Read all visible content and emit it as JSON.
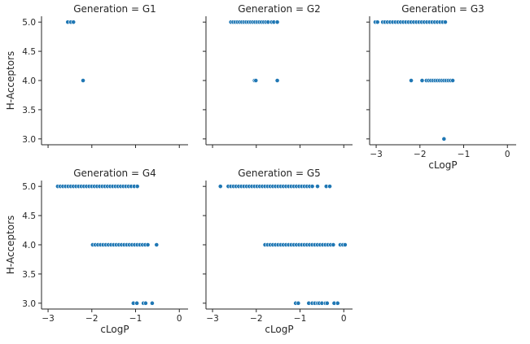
{
  "chart_data": {
    "type": "scatter",
    "xlabel": "cLogP",
    "ylabel": "H-Acceptors",
    "xlim": [
      -3.15,
      0.2
    ],
    "ylim": [
      2.9,
      5.1
    ],
    "xticks": [
      -3,
      -2,
      -1,
      0
    ],
    "xtick_labels": [
      "−3",
      "−2",
      "−1",
      "0"
    ],
    "yticks": [
      3.0,
      3.5,
      4.0,
      4.5,
      5.0
    ],
    "ytick_labels": [
      "3.0",
      "3.5",
      "4.0",
      "4.5",
      "5.0"
    ],
    "color": "#1f77b4",
    "grid": false,
    "panels": [
      {
        "title": "Generation = G1",
        "points": [
          [
            -2.55,
            5
          ],
          [
            -2.48,
            5
          ],
          [
            -2.42,
            5
          ],
          [
            -2.2,
            4
          ]
        ]
      },
      {
        "title": "Generation = G2",
        "points": [
          [
            -2.58,
            5
          ],
          [
            -2.53,
            5
          ],
          [
            -2.48,
            5
          ],
          [
            -2.43,
            5
          ],
          [
            -2.38,
            5
          ],
          [
            -2.33,
            5
          ],
          [
            -2.28,
            5
          ],
          [
            -2.23,
            5
          ],
          [
            -2.18,
            5
          ],
          [
            -2.13,
            5
          ],
          [
            -2.08,
            5
          ],
          [
            -2.03,
            5
          ],
          [
            -1.98,
            5
          ],
          [
            -1.93,
            5
          ],
          [
            -1.88,
            5
          ],
          [
            -1.83,
            5
          ],
          [
            -1.78,
            5
          ],
          [
            -1.73,
            5
          ],
          [
            -1.65,
            5
          ],
          [
            -1.6,
            5
          ],
          [
            -1.52,
            5
          ],
          [
            -2.04,
            4
          ],
          [
            -2.01,
            4
          ],
          [
            -1.52,
            4
          ]
        ]
      },
      {
        "title": "Generation = G3",
        "points": [
          [
            -3.02,
            5
          ],
          [
            -2.97,
            5
          ],
          [
            -2.85,
            5
          ],
          [
            -2.8,
            5
          ],
          [
            -2.74,
            5
          ],
          [
            -2.68,
            5
          ],
          [
            -2.62,
            5
          ],
          [
            -2.56,
            5
          ],
          [
            -2.5,
            5
          ],
          [
            -2.44,
            5
          ],
          [
            -2.38,
            5
          ],
          [
            -2.32,
            5
          ],
          [
            -2.26,
            5
          ],
          [
            -2.2,
            5
          ],
          [
            -2.14,
            5
          ],
          [
            -2.08,
            5
          ],
          [
            -2.02,
            5
          ],
          [
            -1.96,
            5
          ],
          [
            -1.9,
            5
          ],
          [
            -1.84,
            5
          ],
          [
            -1.78,
            5
          ],
          [
            -1.72,
            5
          ],
          [
            -1.66,
            5
          ],
          [
            -1.6,
            5
          ],
          [
            -1.54,
            5
          ],
          [
            -1.48,
            5
          ],
          [
            -1.42,
            5
          ],
          [
            -2.2,
            4
          ],
          [
            -1.95,
            4
          ],
          [
            -1.85,
            4
          ],
          [
            -1.8,
            4
          ],
          [
            -1.75,
            4
          ],
          [
            -1.7,
            4
          ],
          [
            -1.65,
            4
          ],
          [
            -1.6,
            4
          ],
          [
            -1.55,
            4
          ],
          [
            -1.5,
            4
          ],
          [
            -1.45,
            4
          ],
          [
            -1.4,
            4
          ],
          [
            -1.35,
            4
          ],
          [
            -1.3,
            4
          ],
          [
            -1.25,
            4
          ],
          [
            -1.45,
            3
          ]
        ]
      },
      {
        "title": "Generation = G4",
        "points": [
          [
            -2.78,
            5
          ],
          [
            -2.72,
            5
          ],
          [
            -2.66,
            5
          ],
          [
            -2.6,
            5
          ],
          [
            -2.54,
            5
          ],
          [
            -2.48,
            5
          ],
          [
            -2.42,
            5
          ],
          [
            -2.36,
            5
          ],
          [
            -2.3,
            5
          ],
          [
            -2.24,
            5
          ],
          [
            -2.18,
            5
          ],
          [
            -2.12,
            5
          ],
          [
            -2.06,
            5
          ],
          [
            -2.0,
            5
          ],
          [
            -1.94,
            5
          ],
          [
            -1.88,
            5
          ],
          [
            -1.82,
            5
          ],
          [
            -1.76,
            5
          ],
          [
            -1.7,
            5
          ],
          [
            -1.64,
            5
          ],
          [
            -1.58,
            5
          ],
          [
            -1.52,
            5
          ],
          [
            -1.46,
            5
          ],
          [
            -1.4,
            5
          ],
          [
            -1.34,
            5
          ],
          [
            -1.28,
            5
          ],
          [
            -1.22,
            5
          ],
          [
            -1.16,
            5
          ],
          [
            -1.1,
            5
          ],
          [
            -1.03,
            5
          ],
          [
            -0.96,
            5
          ],
          [
            -1.98,
            4
          ],
          [
            -1.92,
            4
          ],
          [
            -1.86,
            4
          ],
          [
            -1.8,
            4
          ],
          [
            -1.74,
            4
          ],
          [
            -1.68,
            4
          ],
          [
            -1.62,
            4
          ],
          [
            -1.56,
            4
          ],
          [
            -1.5,
            4
          ],
          [
            -1.44,
            4
          ],
          [
            -1.38,
            4
          ],
          [
            -1.32,
            4
          ],
          [
            -1.26,
            4
          ],
          [
            -1.2,
            4
          ],
          [
            -1.14,
            4
          ],
          [
            -1.08,
            4
          ],
          [
            -1.02,
            4
          ],
          [
            -0.96,
            4
          ],
          [
            -0.9,
            4
          ],
          [
            -0.84,
            4
          ],
          [
            -0.78,
            4
          ],
          [
            -0.72,
            4
          ],
          [
            -0.52,
            4
          ],
          [
            -1.05,
            3
          ],
          [
            -0.97,
            3
          ],
          [
            -0.82,
            3
          ],
          [
            -0.77,
            3
          ],
          [
            -0.62,
            3
          ]
        ]
      },
      {
        "title": "Generation = G5",
        "points": [
          [
            -2.82,
            5
          ],
          [
            -2.64,
            5
          ],
          [
            -2.58,
            5
          ],
          [
            -2.52,
            5
          ],
          [
            -2.46,
            5
          ],
          [
            -2.4,
            5
          ],
          [
            -2.34,
            5
          ],
          [
            -2.28,
            5
          ],
          [
            -2.22,
            5
          ],
          [
            -2.16,
            5
          ],
          [
            -2.1,
            5
          ],
          [
            -2.04,
            5
          ],
          [
            -1.98,
            5
          ],
          [
            -1.92,
            5
          ],
          [
            -1.86,
            5
          ],
          [
            -1.8,
            5
          ],
          [
            -1.74,
            5
          ],
          [
            -1.68,
            5
          ],
          [
            -1.62,
            5
          ],
          [
            -1.56,
            5
          ],
          [
            -1.5,
            5
          ],
          [
            -1.44,
            5
          ],
          [
            -1.38,
            5
          ],
          [
            -1.32,
            5
          ],
          [
            -1.26,
            5
          ],
          [
            -1.2,
            5
          ],
          [
            -1.14,
            5
          ],
          [
            -1.08,
            5
          ],
          [
            -1.02,
            5
          ],
          [
            -0.96,
            5
          ],
          [
            -0.9,
            5
          ],
          [
            -0.84,
            5
          ],
          [
            -0.78,
            5
          ],
          [
            -0.72,
            5
          ],
          [
            -0.6,
            5
          ],
          [
            -0.4,
            5
          ],
          [
            -0.32,
            5
          ],
          [
            -1.8,
            4
          ],
          [
            -1.74,
            4
          ],
          [
            -1.68,
            4
          ],
          [
            -1.62,
            4
          ],
          [
            -1.56,
            4
          ],
          [
            -1.5,
            4
          ],
          [
            -1.44,
            4
          ],
          [
            -1.38,
            4
          ],
          [
            -1.32,
            4
          ],
          [
            -1.26,
            4
          ],
          [
            -1.2,
            4
          ],
          [
            -1.14,
            4
          ],
          [
            -1.08,
            4
          ],
          [
            -1.02,
            4
          ],
          [
            -0.96,
            4
          ],
          [
            -0.9,
            4
          ],
          [
            -0.84,
            4
          ],
          [
            -0.78,
            4
          ],
          [
            -0.72,
            4
          ],
          [
            -0.66,
            4
          ],
          [
            -0.6,
            4
          ],
          [
            -0.54,
            4
          ],
          [
            -0.48,
            4
          ],
          [
            -0.42,
            4
          ],
          [
            -0.36,
            4
          ],
          [
            -0.3,
            4
          ],
          [
            -0.24,
            4
          ],
          [
            -0.08,
            4
          ],
          [
            -0.02,
            4
          ],
          [
            0.03,
            4
          ],
          [
            -1.1,
            3
          ],
          [
            -1.04,
            3
          ],
          [
            -0.8,
            3
          ],
          [
            -0.72,
            3
          ],
          [
            -0.66,
            3
          ],
          [
            -0.6,
            3
          ],
          [
            -0.56,
            3
          ],
          [
            -0.5,
            3
          ],
          [
            -0.42,
            3
          ],
          [
            -0.38,
            3
          ],
          [
            -0.22,
            3
          ],
          [
            -0.14,
            3
          ]
        ]
      }
    ]
  }
}
